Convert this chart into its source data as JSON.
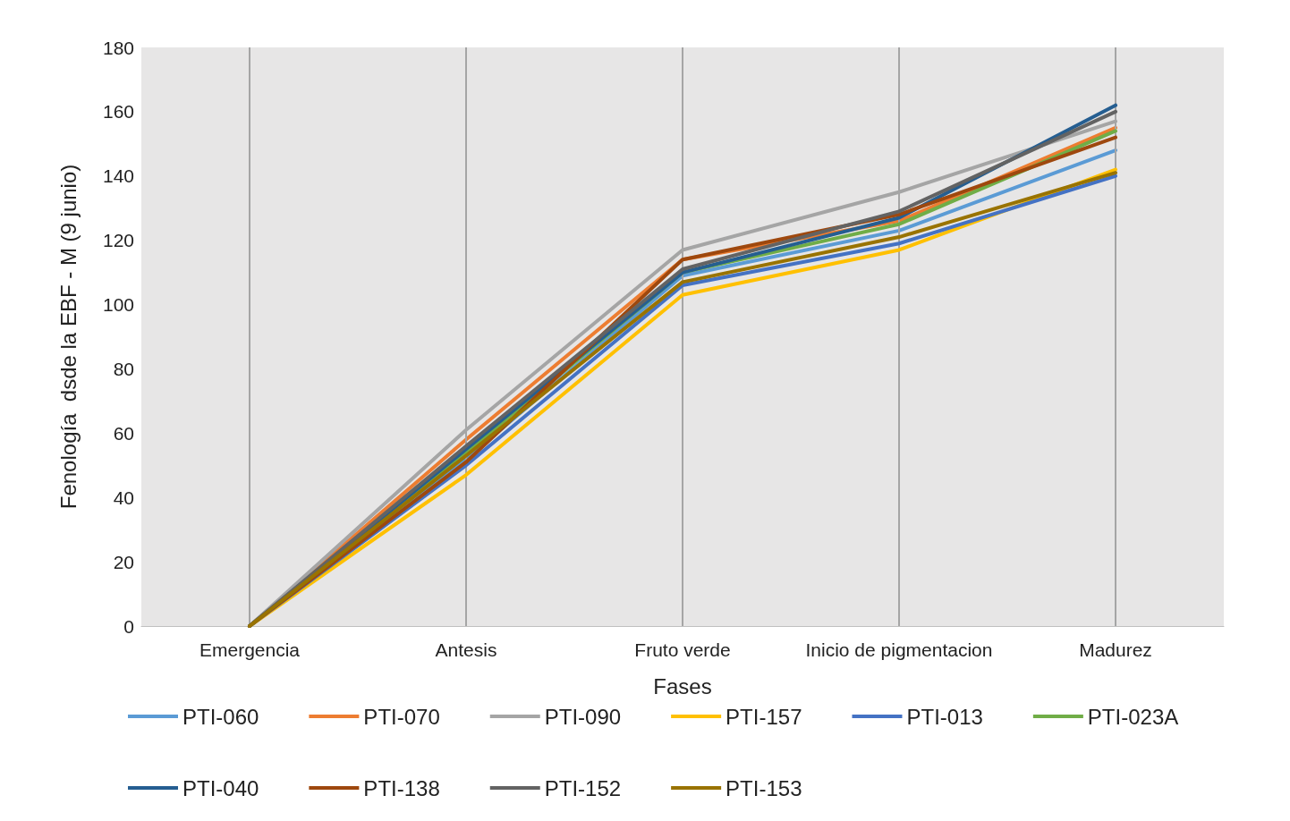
{
  "chart_data": {
    "type": "line",
    "xlabel": "Fases",
    "ylabel": "Fenología  dsde la EBF - M (9 junio)",
    "categories": [
      "Emergencia",
      "Antesis",
      "Fruto verde",
      "Inicio de pigmentacion",
      "Madurez"
    ],
    "ylim": [
      0,
      180
    ],
    "yticks": [
      0,
      20,
      40,
      60,
      80,
      100,
      120,
      140,
      160,
      180
    ],
    "grid": "x",
    "legend": "bottom",
    "marker": "none",
    "line_style": "solid",
    "series": [
      {
        "name": "PTI-060",
        "color": "#5b9bd5",
        "values": [
          0,
          52,
          109,
          123,
          148
        ]
      },
      {
        "name": "PTI-070",
        "color": "#ed7d31",
        "values": [
          0,
          58,
          114,
          126,
          155
        ]
      },
      {
        "name": "PTI-090",
        "color": "#a5a5a5",
        "values": [
          0,
          61,
          117,
          135,
          157
        ]
      },
      {
        "name": "PTI-157",
        "color": "#ffc000",
        "values": [
          0,
          47,
          103,
          117,
          142
        ]
      },
      {
        "name": "PTI-013",
        "color": "#4472c4",
        "values": [
          0,
          50,
          106,
          119,
          140
        ]
      },
      {
        "name": "PTI-023A",
        "color": "#70ad47",
        "values": [
          0,
          54,
          110,
          125,
          154
        ]
      },
      {
        "name": "PTI-040",
        "color": "#255e91",
        "values": [
          0,
          55,
          110,
          127,
          162
        ]
      },
      {
        "name": "PTI-138",
        "color": "#9e480e",
        "values": [
          0,
          51,
          114,
          128,
          152
        ]
      },
      {
        "name": "PTI-152",
        "color": "#636363",
        "values": [
          0,
          56,
          111,
          129,
          160
        ]
      },
      {
        "name": "PTI-153",
        "color": "#997300",
        "values": [
          0,
          53,
          107,
          121,
          141
        ]
      }
    ]
  }
}
